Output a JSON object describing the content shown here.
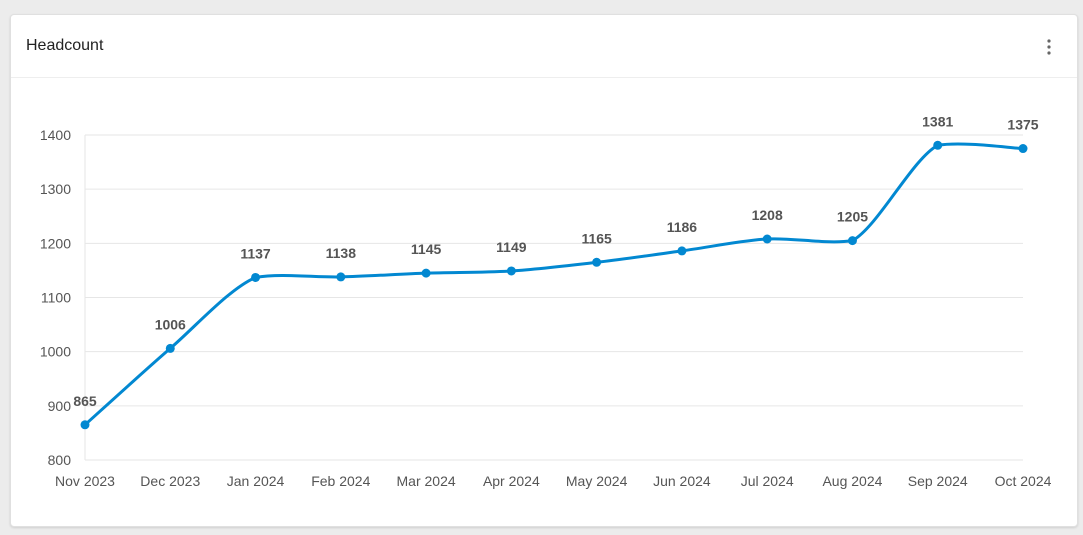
{
  "card": {
    "title": "Headcount",
    "menu_icon": "more-vertical-icon"
  },
  "colors": {
    "series": "#0288d1",
    "grid": "#e6e6e6",
    "axis_text": "#555555",
    "label_text": "#555555"
  },
  "chart_data": {
    "type": "line",
    "title": "",
    "xlabel": "",
    "ylabel": "",
    "ylim": [
      800,
      1400
    ],
    "yticks": [
      800,
      900,
      1000,
      1100,
      1200,
      1300,
      1400
    ],
    "grid": true,
    "legend": "none",
    "categories": [
      "Nov 2023",
      "Dec 2023",
      "Jan 2024",
      "Feb 2024",
      "Mar 2024",
      "Apr 2024",
      "May 2024",
      "Jun 2024",
      "Jul 2024",
      "Aug 2024",
      "Sep 2024",
      "Oct 2024"
    ],
    "series": [
      {
        "values": [
          865,
          1006,
          1137,
          1138,
          1145,
          1149,
          1165,
          1186,
          1208,
          1205,
          1381,
          1375
        ]
      }
    ]
  }
}
